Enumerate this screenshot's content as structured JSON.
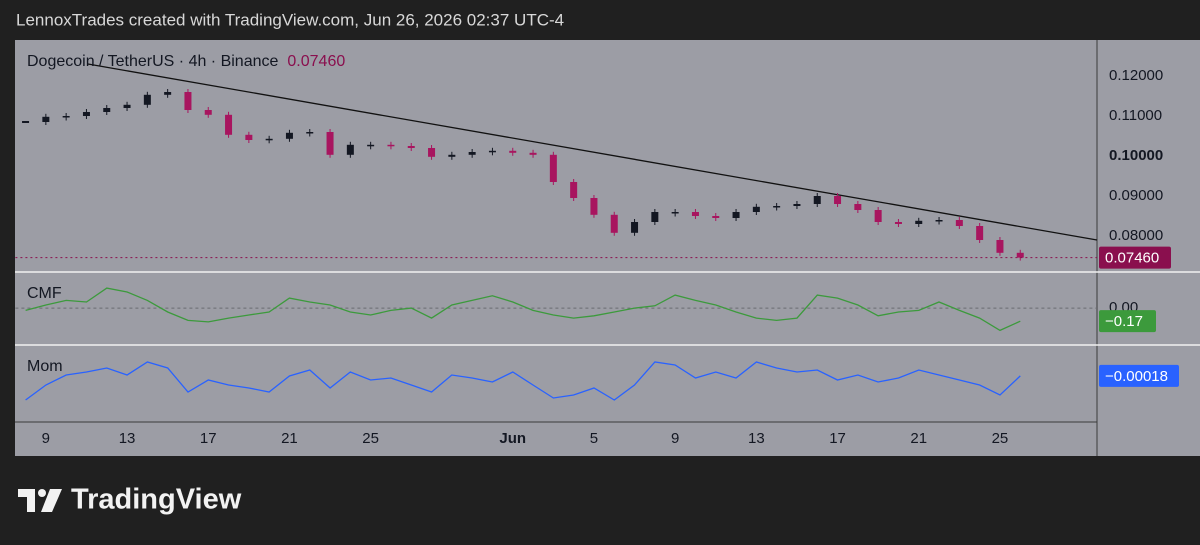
{
  "header": {
    "attribution": "LennoxTrades created with TradingView.com, Jun 26, 2026 02:37 UTC-4"
  },
  "logo": "TradingView",
  "chart_data": [
    {
      "type": "candlestick",
      "title": "Dogecoin / TetherUS · 4h · Binance",
      "categories": [
        null,
        "9",
        null,
        null,
        null,
        "13",
        null,
        null,
        null,
        "17",
        null,
        null,
        null,
        "21",
        null,
        null,
        null,
        "25",
        null,
        null,
        null,
        null,
        null,
        null,
        "Jun",
        null,
        null,
        null,
        "5",
        null,
        null,
        null,
        "9",
        null,
        null,
        null,
        "13",
        null,
        null,
        null,
        "17",
        null,
        null,
        null,
        "21",
        null,
        null,
        null,
        "25",
        null,
        null,
        null,
        null
      ],
      "values": [
        0.1085,
        0.1098,
        0.11,
        0.111,
        0.112,
        0.1128,
        0.1153,
        0.116,
        0.1115,
        0.1103,
        0.1053,
        0.104,
        0.1043,
        0.1058,
        0.106,
        0.1003,
        0.1028,
        0.1028,
        0.1025,
        0.102,
        0.0998,
        0.1003,
        0.101,
        0.1013,
        0.1008,
        0.1003,
        0.0935,
        0.0895,
        0.0853,
        0.0808,
        0.0835,
        0.086,
        0.086,
        0.085,
        0.0845,
        0.086,
        0.0873,
        0.0875,
        0.088,
        0.09,
        0.088,
        0.0865,
        0.0835,
        0.083,
        0.0838,
        0.084,
        0.0825,
        0.079,
        0.0758,
        0.0746,
        null,
        null,
        null
      ],
      "up_color": "#131722",
      "down_color": "#a8155f",
      "ylim": [
        0.071,
        0.129
      ],
      "yticks": [
        {
          "value": 0.08,
          "label": "0.08000"
        },
        {
          "value": 0.09,
          "label": "0.09000"
        },
        {
          "value": 0.1,
          "label": "0.10000"
        },
        {
          "value": 0.11,
          "label": "0.11000"
        },
        {
          "value": 0.12,
          "label": "0.12000"
        }
      ],
      "grid": false,
      "last": {
        "value": 0.0746,
        "label": "0.07460"
      },
      "last_color": "#8a0f4e"
    },
    {
      "type": "line",
      "title": "CMF",
      "values": [
        -0.03,
        0.04,
        0.1,
        0.08,
        0.26,
        0.21,
        0.1,
        -0.05,
        -0.16,
        -0.18,
        -0.13,
        -0.09,
        -0.05,
        0.13,
        0.08,
        0.04,
        -0.05,
        -0.09,
        -0.03,
        0.0,
        -0.13,
        0.04,
        0.1,
        0.16,
        0.08,
        -0.03,
        -0.09,
        -0.13,
        -0.1,
        -0.05,
        0.0,
        0.03,
        0.17,
        0.1,
        0.04,
        -0.05,
        -0.13,
        -0.16,
        -0.13,
        0.17,
        0.13,
        0.04,
        -0.1,
        -0.05,
        -0.03,
        0.08,
        -0.03,
        -0.13,
        -0.29,
        -0.17,
        null,
        null,
        null
      ],
      "color": "#3c9a3c",
      "ylim": [
        -0.48,
        0.47
      ],
      "yticks": [
        {
          "value": 0,
          "label": "0.00"
        }
      ],
      "grid": true,
      "last": {
        "value": -0.17,
        "label": "−0.17"
      },
      "last_color": "#3c9a3c"
    },
    {
      "type": "line",
      "title": "Mom",
      "values": [
        -0.005,
        -0.002,
        0.0,
        0.0006,
        0.0014,
        0.0,
        0.0026,
        0.0014,
        -0.0034,
        -0.001,
        -0.002,
        -0.0026,
        -0.0034,
        -0.0002,
        0.001,
        -0.0026,
        0.0006,
        -0.001,
        -0.0006,
        -0.002,
        -0.0034,
        0.0,
        -0.0006,
        -0.0014,
        0.0006,
        -0.002,
        -0.0046,
        -0.004,
        -0.0026,
        -0.005,
        -0.002,
        0.0026,
        0.002,
        -0.0006,
        0.0006,
        -0.0006,
        0.0026,
        0.0014,
        0.0006,
        0.001,
        -0.001,
        0.0,
        -0.0014,
        -0.0006,
        0.001,
        0.0,
        -0.001,
        -0.002,
        -0.004,
        -0.00018,
        null,
        null,
        null
      ],
      "color": "#2962ff",
      "ylim": [
        -0.0094,
        0.006
      ],
      "last": {
        "value": -0.00018,
        "label": "−0.00018"
      },
      "last_color": "#2962ff"
    }
  ]
}
